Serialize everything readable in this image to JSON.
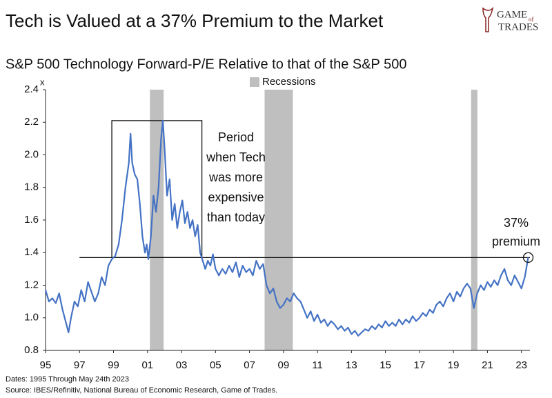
{
  "chart_data": {
    "type": "line",
    "title": "Tech is Valued at a 37% Premium to the Market",
    "subtitle": "S&P 500 Technology Forward-P/E Relative to that of the S&P 500",
    "y_unit": "x",
    "logo": [
      "GAME",
      "of",
      "TRADES"
    ],
    "recession_label": "Recessions",
    "recessions": [
      [
        2001.14,
        2001.95
      ],
      [
        2007.89,
        2009.55
      ],
      [
        2020.04,
        2020.41
      ]
    ],
    "recession_color": "#bfbfbf",
    "reference_value": 1.37,
    "highlight_box": {
      "x": [
        1998.9,
        2004.2
      ],
      "y": [
        1.37,
        2.21
      ]
    },
    "box_annotation": [
      "Period",
      "when Tech",
      "was more",
      "expensive",
      "than today"
    ],
    "end_annotation": [
      "37%",
      "premium"
    ],
    "footnotes": [
      "Dates: 1995 Through May 24th 2023",
      "Source: IBES/Refinitiv, National Bureau of Economic Research, Game of Trades."
    ],
    "xlim": [
      1995,
      2023.5
    ],
    "ylim": [
      0.8,
      2.4
    ],
    "xticks": [
      {
        "value": 1995,
        "label": "95"
      },
      {
        "value": 1997,
        "label": "97"
      },
      {
        "value": 1999,
        "label": "99"
      },
      {
        "value": 2001,
        "label": "01"
      },
      {
        "value": 2003,
        "label": "03"
      },
      {
        "value": 2005,
        "label": "05"
      },
      {
        "value": 2007,
        "label": "07"
      },
      {
        "value": 2009,
        "label": "09"
      },
      {
        "value": 2011,
        "label": "11"
      },
      {
        "value": 2013,
        "label": "13"
      },
      {
        "value": 2015,
        "label": "15"
      },
      {
        "value": 2017,
        "label": "17"
      },
      {
        "value": 2019,
        "label": "19"
      },
      {
        "value": 2021,
        "label": "21"
      },
      {
        "value": 2023,
        "label": "23"
      }
    ],
    "yticks": [
      2.4,
      2.2,
      {
        "value": 2.0,
        "label": "2.0"
      },
      1.8,
      1.6,
      1.4,
      1.2,
      {
        "value": 1.0,
        "label": "1.0"
      },
      0.8
    ],
    "series": [
      {
        "color": "#4472c4",
        "x": [
          1995.0,
          1995.2,
          1995.4,
          1995.6,
          1995.8,
          1996.0,
          1996.2,
          1996.35,
          1996.5,
          1996.7,
          1996.9,
          1997.1,
          1997.3,
          1997.5,
          1997.7,
          1997.9,
          1998.1,
          1998.3,
          1998.5,
          1998.7,
          1998.9,
          1999.1,
          1999.3,
          1999.5,
          1999.7,
          1999.9,
          2000.0,
          2000.1,
          2000.25,
          2000.4,
          2000.55,
          2000.7,
          2000.85,
          2000.95,
          2001.05,
          2001.2,
          2001.35,
          2001.5,
          2001.65,
          2001.8,
          2001.9,
          2002.0,
          2002.15,
          2002.3,
          2002.45,
          2002.6,
          2002.75,
          2002.9,
          2003.05,
          2003.2,
          2003.35,
          2003.5,
          2003.65,
          2003.8,
          2003.95,
          2004.1,
          2004.25,
          2004.4,
          2004.55,
          2004.7,
          2004.85,
          2005.0,
          2005.2,
          2005.4,
          2005.6,
          2005.8,
          2006.0,
          2006.2,
          2006.4,
          2006.6,
          2006.8,
          2007.0,
          2007.2,
          2007.4,
          2007.6,
          2007.8,
          2008.0,
          2008.2,
          2008.4,
          2008.6,
          2008.8,
          2009.0,
          2009.2,
          2009.4,
          2009.6,
          2009.8,
          2010.0,
          2010.2,
          2010.4,
          2010.6,
          2010.8,
          2011.0,
          2011.2,
          2011.4,
          2011.6,
          2011.8,
          2012.0,
          2012.2,
          2012.4,
          2012.6,
          2012.8,
          2013.0,
          2013.2,
          2013.4,
          2013.6,
          2013.8,
          2014.0,
          2014.2,
          2014.4,
          2014.6,
          2014.8,
          2015.0,
          2015.2,
          2015.4,
          2015.6,
          2015.8,
          2016.0,
          2016.2,
          2016.4,
          2016.6,
          2016.8,
          2017.0,
          2017.2,
          2017.4,
          2017.6,
          2017.8,
          2018.0,
          2018.2,
          2018.4,
          2018.6,
          2018.8,
          2019.0,
          2019.2,
          2019.4,
          2019.6,
          2019.8,
          2020.0,
          2020.2,
          2020.4,
          2020.6,
          2020.8,
          2021.0,
          2021.2,
          2021.4,
          2021.6,
          2021.8,
          2022.0,
          2022.2,
          2022.4,
          2022.6,
          2022.8,
          2023.0,
          2023.2,
          2023.4
        ],
        "values": [
          1.17,
          1.1,
          1.12,
          1.09,
          1.15,
          1.05,
          0.97,
          0.91,
          1.0,
          1.1,
          1.07,
          1.17,
          1.1,
          1.22,
          1.16,
          1.1,
          1.15,
          1.25,
          1.2,
          1.32,
          1.36,
          1.38,
          1.45,
          1.6,
          1.8,
          1.95,
          2.13,
          1.95,
          1.88,
          1.85,
          1.7,
          1.5,
          1.4,
          1.45,
          1.36,
          1.5,
          1.75,
          1.65,
          1.8,
          2.1,
          2.21,
          2.05,
          1.75,
          1.85,
          1.6,
          1.7,
          1.55,
          1.65,
          1.72,
          1.58,
          1.65,
          1.55,
          1.6,
          1.5,
          1.57,
          1.4,
          1.35,
          1.3,
          1.35,
          1.32,
          1.39,
          1.3,
          1.26,
          1.3,
          1.27,
          1.32,
          1.28,
          1.34,
          1.25,
          1.32,
          1.28,
          1.3,
          1.26,
          1.35,
          1.3,
          1.33,
          1.2,
          1.15,
          1.18,
          1.1,
          1.06,
          1.08,
          1.12,
          1.1,
          1.15,
          1.12,
          1.1,
          1.05,
          1.0,
          1.04,
          0.98,
          1.02,
          0.97,
          0.99,
          0.95,
          0.98,
          0.96,
          0.93,
          0.95,
          0.92,
          0.94,
          0.9,
          0.92,
          0.89,
          0.91,
          0.93,
          0.92,
          0.95,
          0.93,
          0.96,
          0.94,
          0.98,
          0.95,
          0.97,
          0.95,
          0.99,
          0.96,
          0.99,
          0.97,
          1.01,
          0.98,
          1.0,
          1.03,
          1.01,
          1.05,
          1.03,
          1.08,
          1.1,
          1.07,
          1.12,
          1.15,
          1.1,
          1.16,
          1.13,
          1.18,
          1.21,
          1.18,
          1.06,
          1.15,
          1.2,
          1.17,
          1.22,
          1.19,
          1.23,
          1.2,
          1.26,
          1.3,
          1.23,
          1.2,
          1.26,
          1.22,
          1.18,
          1.25,
          1.37
        ]
      }
    ]
  }
}
